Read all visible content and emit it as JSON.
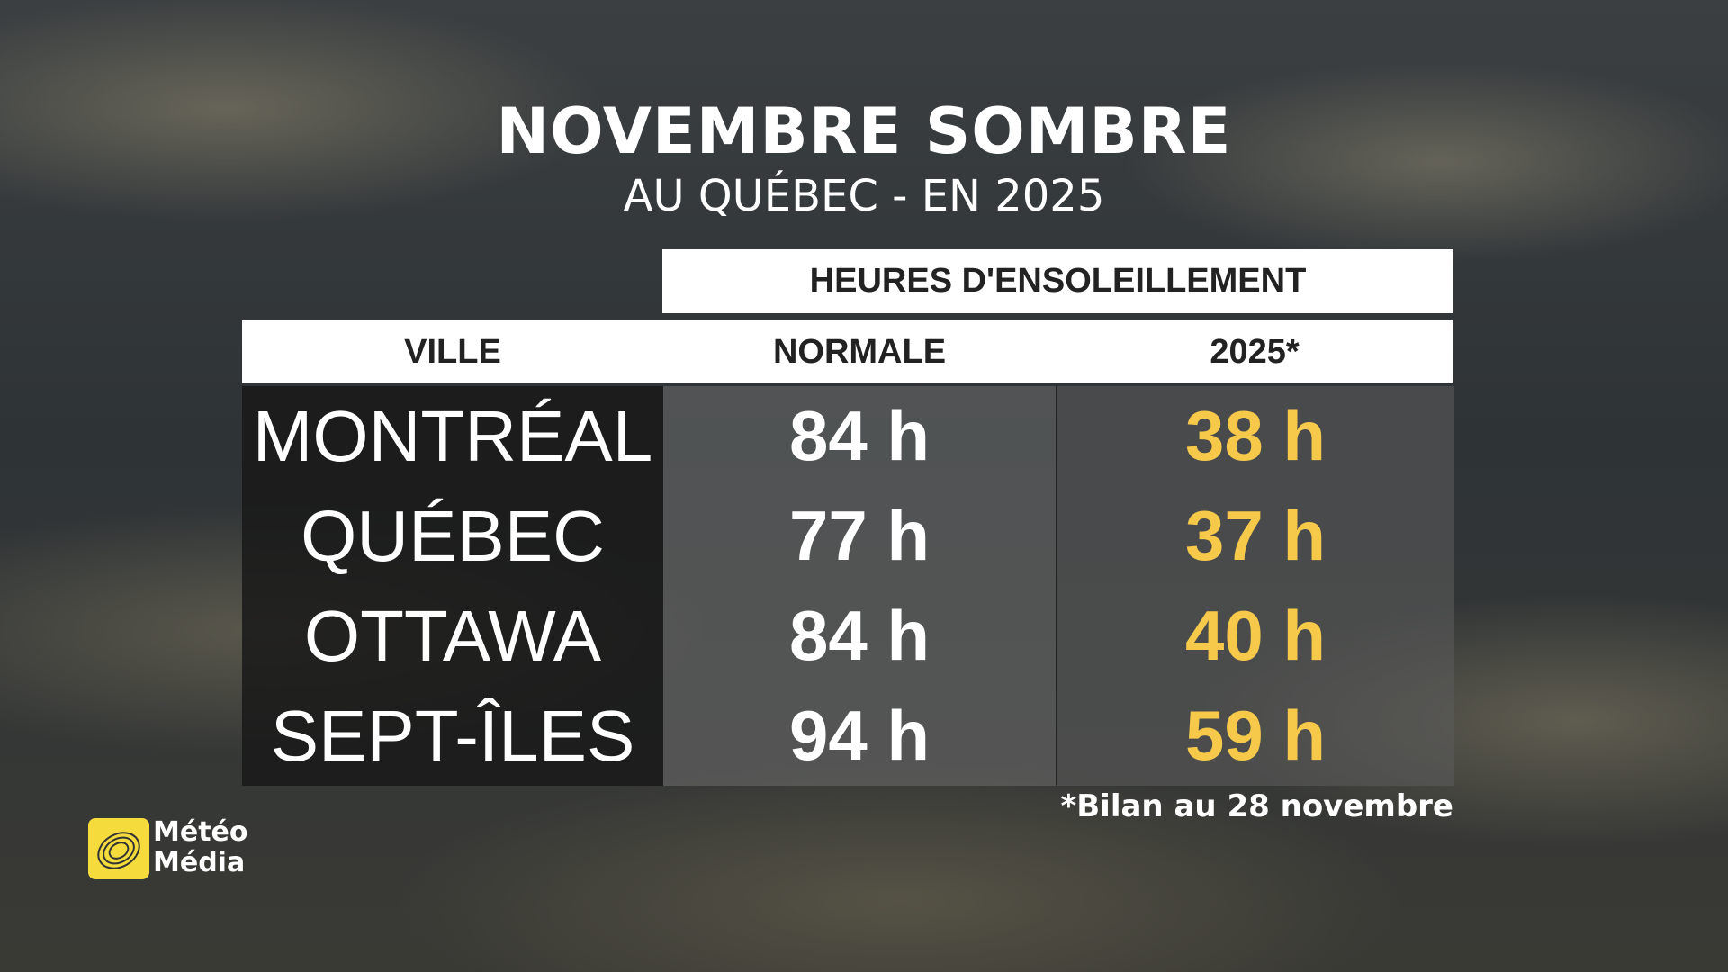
{
  "header": {
    "title": "NOVEMBRE SOMBRE",
    "subtitle": "AU QUÉBEC - EN 2025"
  },
  "table": {
    "group_header": "HEURES D'ENSOLEILLEMENT",
    "columns": [
      "VILLE",
      "NORMALE",
      "2025*"
    ],
    "rows": [
      [
        "MONTRÉAL",
        "84 h",
        "38 h"
      ],
      [
        "QUÉBEC",
        "77 h",
        "37 h"
      ],
      [
        "OTTAWA",
        "84 h",
        "40 h"
      ],
      [
        "SEPT-ÎLES",
        "94 h",
        "59 h"
      ]
    ],
    "footnote": "*Bilan au 28 novembre"
  },
  "logo": {
    "lines": [
      "Météo",
      "Média"
    ]
  }
}
